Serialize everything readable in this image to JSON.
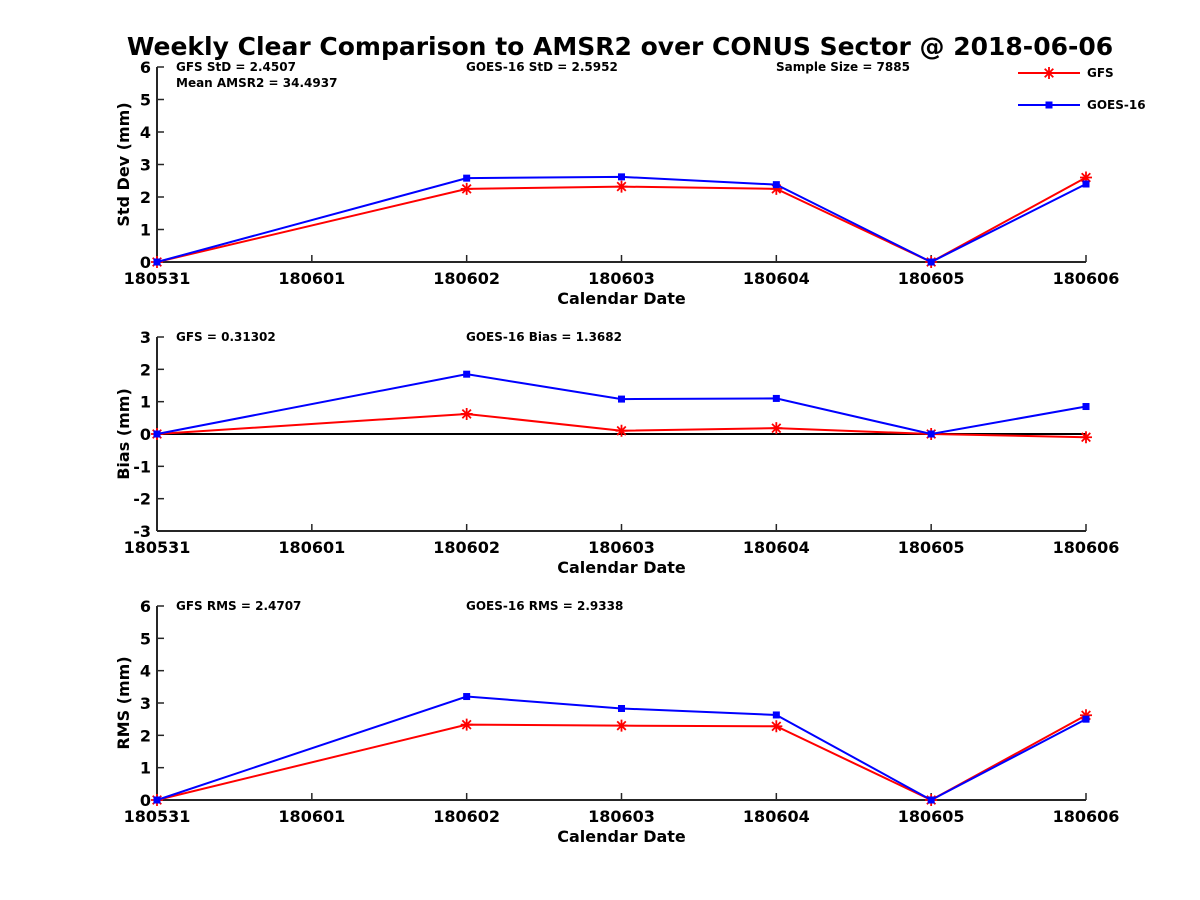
{
  "title": "Weekly Clear Comparison to AMSR2 over CONUS Sector @ 2018-06-06",
  "legend": [
    {
      "name": "GFS",
      "color": "#ff0000",
      "marker": "asterisk"
    },
    {
      "name": "GOES-16",
      "color": "#0000ff",
      "marker": "square"
    }
  ],
  "chart_data": [
    {
      "type": "line",
      "x": [
        "180531",
        "180601",
        "180602",
        "180603",
        "180604",
        "180605",
        "180606"
      ],
      "xlabel": "Calendar Date",
      "ylabel": "Std Dev (mm)",
      "ylim": [
        0,
        6
      ],
      "yticks": [
        0,
        1,
        2,
        3,
        4,
        5,
        6
      ],
      "grid": false,
      "zero_line": false,
      "annotations": [
        {
          "text": "GFS StD = 2.4507",
          "col": 0,
          "row": 0
        },
        {
          "text": "Mean AMSR2 = 34.4937",
          "col": 0,
          "row": 1
        },
        {
          "text": "GOES-16 StD = 2.5952",
          "col": 1,
          "row": 0
        },
        {
          "text": "Sample Size = 7885",
          "col": 2,
          "row": 0
        }
      ],
      "series": [
        {
          "name": "GFS",
          "color": "#ff0000",
          "marker": "asterisk",
          "points": [
            [
              0,
              0.0
            ],
            [
              2,
              2.25
            ],
            [
              3,
              2.32
            ],
            [
              4,
              2.25
            ],
            [
              5,
              0.0
            ],
            [
              6,
              2.6
            ]
          ]
        },
        {
          "name": "GOES-16",
          "color": "#0000ff",
          "marker": "square",
          "points": [
            [
              0,
              0.0
            ],
            [
              2,
              2.58
            ],
            [
              3,
              2.62
            ],
            [
              4,
              2.38
            ],
            [
              5,
              0.0
            ],
            [
              6,
              2.4
            ]
          ]
        }
      ]
    },
    {
      "type": "line",
      "x": [
        "180531",
        "180601",
        "180602",
        "180603",
        "180604",
        "180605",
        "180606"
      ],
      "xlabel": "Calendar Date",
      "ylabel": "Bias (mm)",
      "ylim": [
        -3,
        3
      ],
      "yticks": [
        -3,
        -2,
        -1,
        0,
        1,
        2,
        3
      ],
      "grid": false,
      "zero_line": true,
      "annotations": [
        {
          "text": "GFS = 0.31302",
          "col": 0,
          "row": 0
        },
        {
          "text": "GOES-16 Bias  = 1.3682",
          "col": 1,
          "row": 0
        }
      ],
      "series": [
        {
          "name": "GFS",
          "color": "#ff0000",
          "marker": "asterisk",
          "points": [
            [
              0,
              0.0
            ],
            [
              2,
              0.62
            ],
            [
              3,
              0.1
            ],
            [
              4,
              0.18
            ],
            [
              5,
              0.0
            ],
            [
              6,
              -0.1
            ]
          ]
        },
        {
          "name": "GOES-16",
          "color": "#0000ff",
          "marker": "square",
          "points": [
            [
              0,
              0.0
            ],
            [
              2,
              1.85
            ],
            [
              3,
              1.08
            ],
            [
              4,
              1.1
            ],
            [
              5,
              0.0
            ],
            [
              6,
              0.85
            ]
          ]
        }
      ]
    },
    {
      "type": "line",
      "x": [
        "180531",
        "180601",
        "180602",
        "180603",
        "180604",
        "180605",
        "180606"
      ],
      "xlabel": "Calendar Date",
      "ylabel": "RMS (mm)",
      "ylim": [
        0,
        6
      ],
      "yticks": [
        0,
        1,
        2,
        3,
        4,
        5,
        6
      ],
      "grid": false,
      "zero_line": false,
      "annotations": [
        {
          "text": "GFS RMS = 2.4707",
          "col": 0,
          "row": 0
        },
        {
          "text": "GOES-16 RMS = 2.9338",
          "col": 1,
          "row": 0
        }
      ],
      "series": [
        {
          "name": "GFS",
          "color": "#ff0000",
          "marker": "asterisk",
          "points": [
            [
              0,
              0.0
            ],
            [
              2,
              2.33
            ],
            [
              3,
              2.3
            ],
            [
              4,
              2.28
            ],
            [
              5,
              0.0
            ],
            [
              6,
              2.62
            ]
          ]
        },
        {
          "name": "GOES-16",
          "color": "#0000ff",
          "marker": "square",
          "points": [
            [
              0,
              0.0
            ],
            [
              2,
              3.2
            ],
            [
              3,
              2.83
            ],
            [
              4,
              2.63
            ],
            [
              5,
              0.0
            ],
            [
              6,
              2.5
            ]
          ]
        }
      ]
    }
  ]
}
